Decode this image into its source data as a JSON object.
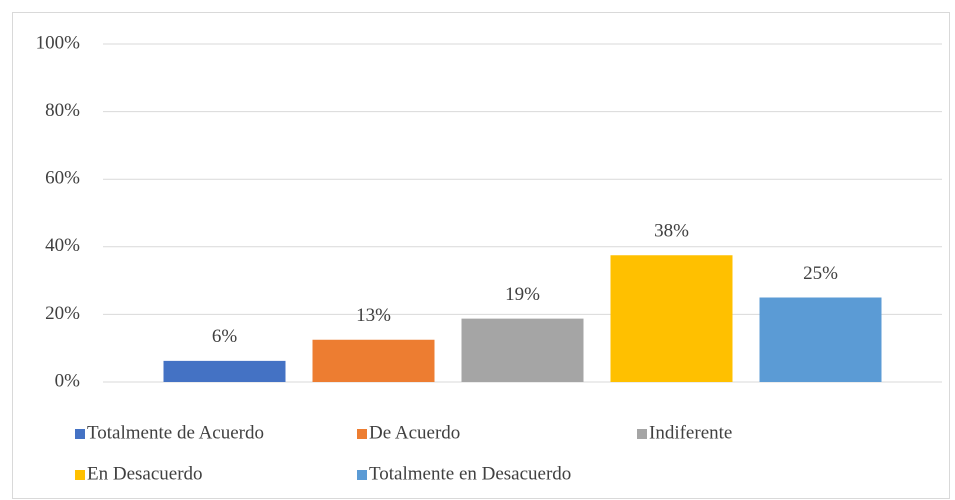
{
  "chart_data": {
    "type": "bar",
    "categories": [
      "Totalmente de Acuerdo",
      "De Acuerdo",
      "Indiferente",
      "En Desacuerdo",
      "Totalmente en Desacuerdo"
    ],
    "values": [
      6.25,
      12.5,
      18.75,
      37.5,
      25
    ],
    "value_labels": [
      "6%",
      "13%",
      "19%",
      "38%",
      "25%"
    ],
    "colors": [
      "#4472c4",
      "#ed7d31",
      "#a5a5a5",
      "#ffc000",
      "#5b9bd5"
    ],
    "ylim": [
      0,
      100
    ],
    "yticks": [
      {
        "value": 0,
        "label": "0%"
      },
      {
        "value": 20,
        "label": "20%"
      },
      {
        "value": 40,
        "label": "40%"
      },
      {
        "value": 60,
        "label": "60%"
      },
      {
        "value": 80,
        "label": "80%"
      },
      {
        "value": 100,
        "label": "100%"
      }
    ],
    "grid": true,
    "legend": "bottom"
  }
}
